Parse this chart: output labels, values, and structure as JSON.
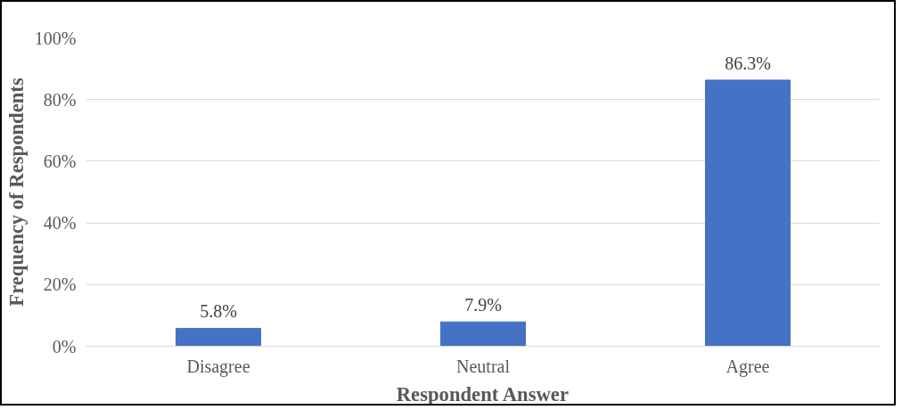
{
  "chart_data": {
    "type": "bar",
    "xlabel": "Respondent Answer",
    "ylabel": "Frequency of Respondents",
    "categories": [
      "Disagree",
      "Neutral",
      "Agree"
    ],
    "values": [
      5.8,
      7.9,
      86.3
    ],
    "color": "#4472c4",
    "value_labels": [
      "5.8%",
      "7.9%",
      "86.3%"
    ],
    "ylim": [
      0,
      100
    ],
    "yticks": [
      {
        "value": 0,
        "label": "0%"
      },
      {
        "value": 20,
        "label": "20%"
      },
      {
        "value": 40,
        "label": "40%"
      },
      {
        "value": 60,
        "label": "60%"
      },
      {
        "value": 80,
        "label": "80%"
      },
      {
        "value": 100,
        "label": "100%"
      }
    ],
    "grid": "y"
  }
}
